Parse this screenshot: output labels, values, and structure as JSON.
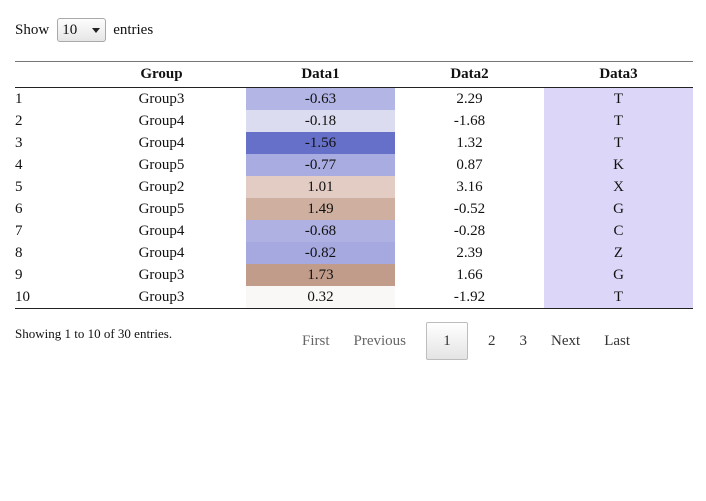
{
  "length_menu": {
    "prefix": "Show",
    "selected": "10",
    "suffix": "entries"
  },
  "table": {
    "columns": [
      "",
      "Group",
      "Data1",
      "Data2",
      "Data3"
    ],
    "rows": [
      {
        "idx": "1",
        "group": "Group3",
        "data1": "-0.63",
        "data2": "2.29",
        "data3": "T",
        "data1_bg": "#b3b5e5",
        "data3_bg": "#dcd7f8"
      },
      {
        "idx": "2",
        "group": "Group4",
        "data1": "-0.18",
        "data2": "-1.68",
        "data3": "T",
        "data1_bg": "#dcdcf1",
        "data3_bg": "#dcd7f8"
      },
      {
        "idx": "3",
        "group": "Group4",
        "data1": "-1.56",
        "data2": "1.32",
        "data3": "T",
        "data1_bg": "#6670c8",
        "data3_bg": "#dcd7f8"
      },
      {
        "idx": "4",
        "group": "Group5",
        "data1": "-0.77",
        "data2": "0.87",
        "data3": "K",
        "data1_bg": "#a9ace1",
        "data3_bg": "#dcd7f8"
      },
      {
        "idx": "5",
        "group": "Group2",
        "data1": "1.01",
        "data2": "3.16",
        "data3": "X",
        "data1_bg": "#e2ccc3",
        "data3_bg": "#dcd7f8"
      },
      {
        "idx": "6",
        "group": "Group5",
        "data1": "1.49",
        "data2": "-0.52",
        "data3": "G",
        "data1_bg": "#cfaf9f",
        "data3_bg": "#dcd7f8"
      },
      {
        "idx": "7",
        "group": "Group4",
        "data1": "-0.68",
        "data2": "-0.28",
        "data3": "C",
        "data1_bg": "#afb1e3",
        "data3_bg": "#dcd7f8"
      },
      {
        "idx": "8",
        "group": "Group4",
        "data1": "-0.82",
        "data2": "2.39",
        "data3": "Z",
        "data1_bg": "#a6a9e0",
        "data3_bg": "#dcd7f8"
      },
      {
        "idx": "9",
        "group": "Group3",
        "data1": "1.73",
        "data2": "1.66",
        "data3": "G",
        "data1_bg": "#c19c8a",
        "data3_bg": "#dcd7f8"
      },
      {
        "idx": "10",
        "group": "Group3",
        "data1": "0.32",
        "data2": "-1.92",
        "data3": "T",
        "data1_bg": "#faf8f7",
        "data3_bg": "#dcd7f8"
      }
    ]
  },
  "info": "Showing 1 to 10 of 30 entries.",
  "pagination": {
    "first": "First",
    "previous": "Previous",
    "pages": [
      "1",
      "2",
      "3"
    ],
    "current": "1",
    "next": "Next",
    "last": "Last"
  }
}
